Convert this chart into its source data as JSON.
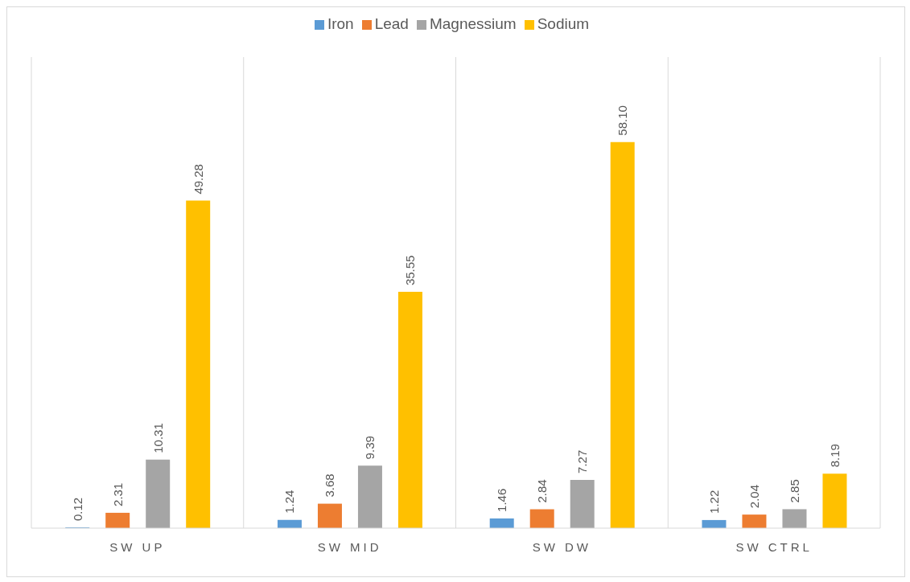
{
  "chart_data": {
    "type": "bar",
    "categories": [
      "SW UP",
      "SW MID",
      "SW DW",
      "SW CTRL"
    ],
    "series": [
      {
        "name": "Iron",
        "color": "#5b9bd5",
        "values": [
          0.12,
          1.24,
          1.46,
          1.22
        ],
        "value_labels": [
          "0.12",
          "1.24",
          "1.46",
          "1.22"
        ]
      },
      {
        "name": "Lead",
        "color": "#ed7d31",
        "values": [
          2.31,
          3.68,
          2.84,
          2.04
        ],
        "value_labels": [
          "2.31",
          "3.68",
          "2.84",
          "2.04"
        ]
      },
      {
        "name": "Magnessium",
        "color": "#a5a5a5",
        "values": [
          10.31,
          9.39,
          7.27,
          2.85
        ],
        "value_labels": [
          "10.31",
          "9.39",
          "7.27",
          "2.85"
        ]
      },
      {
        "name": "Sodium",
        "color": "#ffc000",
        "values": [
          49.28,
          35.55,
          58.1,
          8.19
        ],
        "value_labels": [
          "49.28",
          "35.55",
          "58.10",
          "8.19"
        ]
      }
    ],
    "grid": "x",
    "legend": "top"
  }
}
